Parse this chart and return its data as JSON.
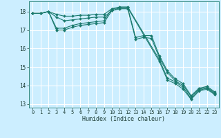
{
  "xlabel": "Humidex (Indice chaleur)",
  "background_color": "#cceeff",
  "grid_color": "#ffffff",
  "line_color": "#1a7a6e",
  "xlim": [
    -0.5,
    23.5
  ],
  "ylim": [
    12.8,
    18.55
  ],
  "yticks": [
    13,
    14,
    15,
    16,
    17,
    18
  ],
  "xticks": [
    0,
    1,
    2,
    3,
    4,
    5,
    6,
    7,
    8,
    9,
    10,
    11,
    12,
    13,
    14,
    15,
    16,
    17,
    18,
    19,
    20,
    21,
    22,
    23
  ],
  "lines": [
    {
      "x": [
        0,
        1,
        2,
        3,
        4,
        5,
        6,
        7,
        8,
        9,
        10,
        11,
        12,
        13,
        14,
        15,
        16,
        17,
        18,
        19,
        20,
        21,
        22,
        23
      ],
      "y": [
        17.9,
        17.9,
        18.0,
        17.85,
        17.75,
        17.75,
        17.8,
        17.8,
        17.85,
        17.85,
        18.15,
        18.2,
        18.2,
        16.6,
        16.7,
        16.7,
        15.6,
        14.8,
        14.35,
        14.1,
        13.45,
        13.85,
        13.95,
        13.65
      ]
    },
    {
      "x": [
        0,
        1,
        2,
        3,
        4,
        5,
        6,
        7,
        8,
        9,
        10,
        11,
        12,
        13,
        14,
        15,
        16,
        17,
        18,
        19,
        20,
        21,
        22,
        23
      ],
      "y": [
        17.9,
        17.9,
        18.0,
        17.7,
        17.5,
        17.55,
        17.6,
        17.65,
        17.7,
        17.7,
        18.05,
        18.15,
        18.15,
        16.5,
        16.6,
        16.55,
        15.5,
        14.7,
        14.25,
        14.0,
        13.4,
        13.8,
        13.9,
        13.6
      ]
    },
    {
      "x": [
        0,
        1,
        2,
        3,
        4,
        5,
        6,
        7,
        8,
        9,
        10,
        11,
        12,
        16,
        17,
        18,
        19,
        20,
        21,
        22,
        23
      ],
      "y": [
        17.9,
        17.9,
        18.0,
        17.1,
        17.1,
        17.25,
        17.35,
        17.4,
        17.45,
        17.5,
        18.15,
        18.25,
        18.25,
        15.4,
        14.4,
        14.2,
        13.9,
        13.3,
        13.75,
        13.85,
        13.55
      ]
    },
    {
      "x": [
        0,
        1,
        2,
        3,
        4,
        5,
        6,
        7,
        8,
        9,
        10,
        11,
        12,
        16,
        17,
        18,
        19,
        20,
        21,
        22,
        23
      ],
      "y": [
        17.9,
        17.9,
        18.0,
        17.0,
        17.0,
        17.15,
        17.25,
        17.3,
        17.35,
        17.4,
        18.05,
        18.2,
        18.2,
        15.3,
        14.3,
        14.1,
        13.8,
        13.25,
        13.7,
        13.8,
        13.5
      ]
    }
  ]
}
